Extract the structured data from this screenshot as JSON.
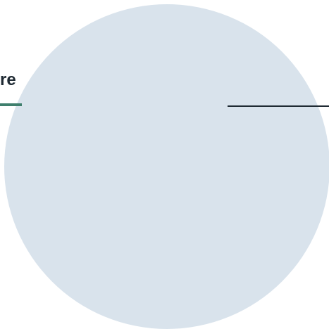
{
  "heading": {
    "label": "re"
  },
  "colors": {
    "background": "#ffffff",
    "circle_fill": "#d9e3ec",
    "accent_underline": "#3f7f6d",
    "text": "#1f2a33",
    "line": "#1f2a33"
  }
}
